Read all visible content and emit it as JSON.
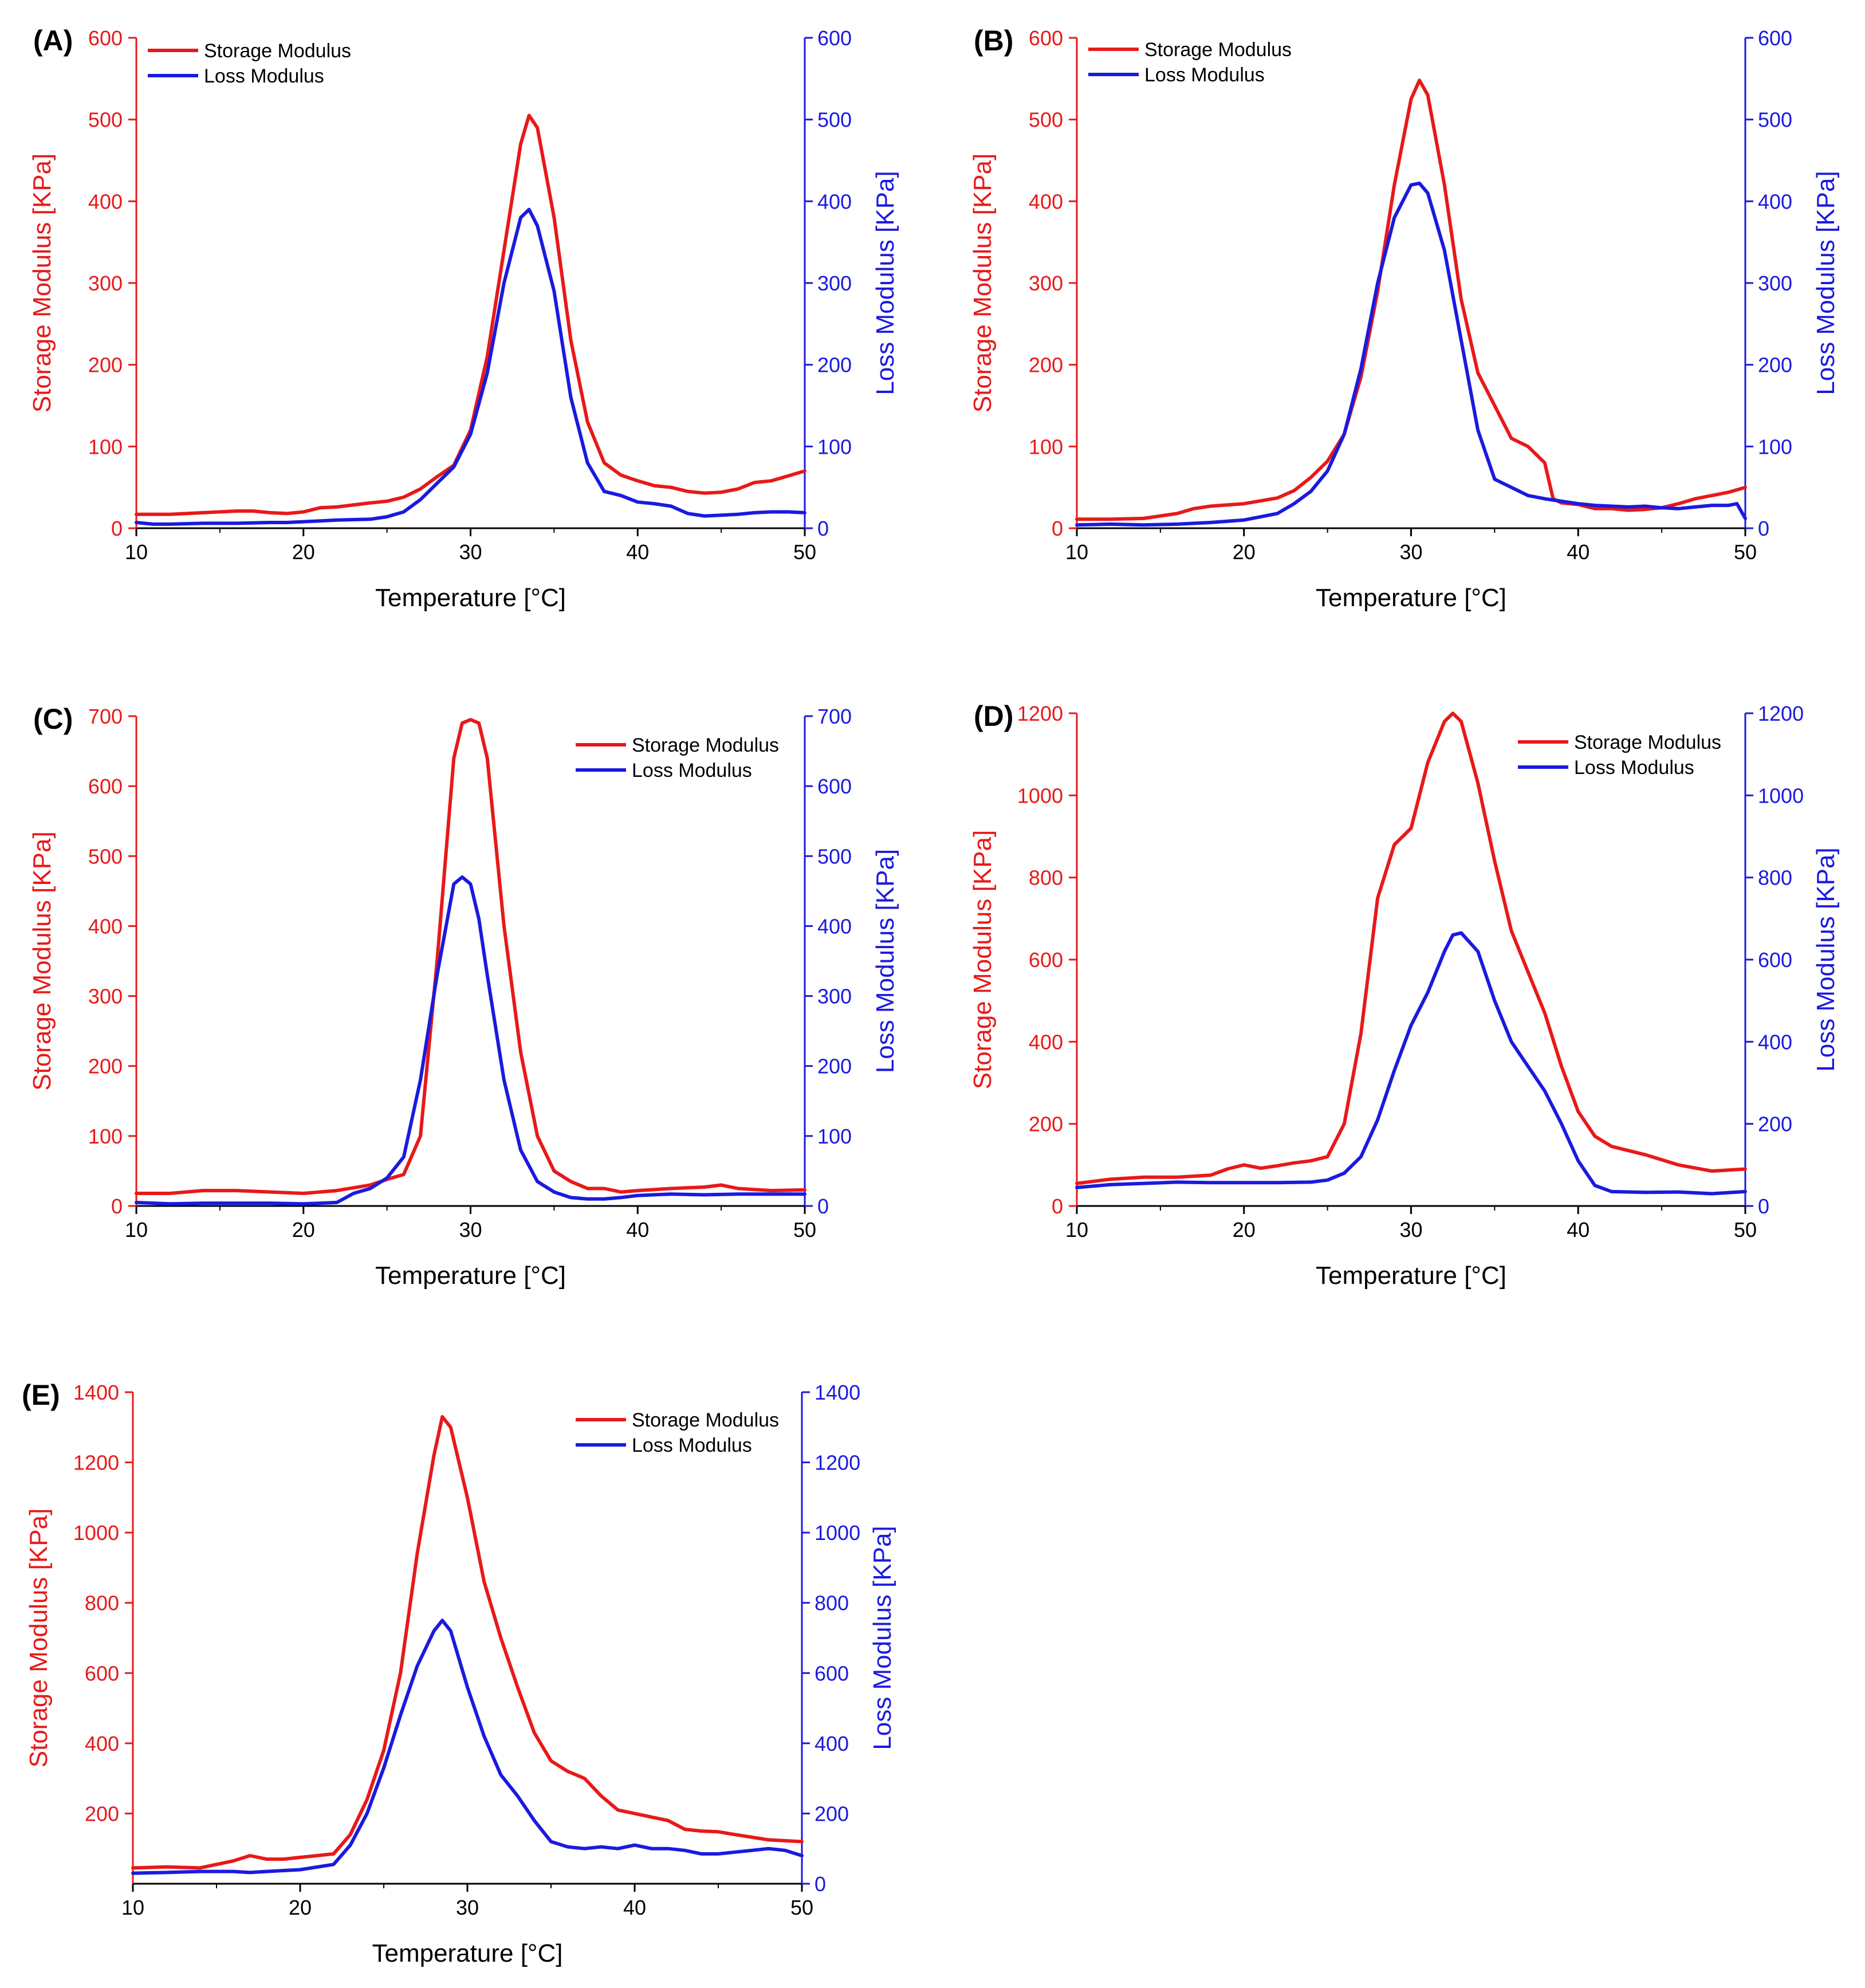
{
  "figure": {
    "colors": {
      "storage": "#e81919",
      "loss": "#1a1adf",
      "axis": "#000000"
    },
    "panels": [
      {
        "label": "(A)"
      },
      {
        "label": "(B)"
      },
      {
        "label": "(C)"
      },
      {
        "label": "(D)"
      },
      {
        "label": "(E)"
      }
    ]
  },
  "chart_data": [
    {
      "type": "line",
      "panel": "(A)",
      "xlabel": "Temperature [°C]",
      "ylabel_left": "Storage Modulus [KPa]",
      "ylabel_right": "Loss Modulus [KPa]",
      "xlim": [
        10,
        50
      ],
      "xticks": [
        10,
        20,
        30,
        40,
        50
      ],
      "ylim": [
        0,
        600
      ],
      "yticks": [
        0,
        100,
        200,
        300,
        400,
        500,
        600
      ],
      "legend_position": "top-left",
      "series": [
        {
          "name": "Storage Modulus",
          "axis": "left",
          "x": [
            10,
            12,
            14,
            16,
            17,
            18,
            19,
            20,
            21,
            22,
            24,
            25,
            26,
            27,
            28,
            29,
            30,
            31,
            32,
            33,
            33.5,
            34,
            35,
            36,
            37,
            38,
            39,
            40,
            41,
            42,
            43,
            44,
            45,
            46,
            47,
            48,
            49,
            50
          ],
          "y": [
            17,
            17,
            19,
            21,
            21,
            19,
            18,
            20,
            25,
            26,
            31,
            33,
            38,
            48,
            63,
            77,
            120,
            210,
            340,
            470,
            505,
            490,
            380,
            230,
            130,
            80,
            65,
            58,
            52,
            50,
            45,
            43,
            44,
            48,
            56,
            58,
            64,
            70
          ]
        },
        {
          "name": "Loss Modulus",
          "axis": "right",
          "x": [
            10,
            11,
            12,
            14,
            16,
            18,
            19,
            20,
            21,
            22,
            24,
            25,
            26,
            27,
            28,
            29,
            30,
            31,
            32,
            33,
            33.5,
            34,
            35,
            36,
            37,
            38,
            39,
            40,
            41,
            42,
            43,
            44,
            45,
            46,
            47,
            48,
            49,
            50
          ],
          "y": [
            7,
            5,
            5,
            6,
            6,
            7,
            7,
            8,
            9,
            10,
            11,
            14,
            20,
            35,
            55,
            75,
            115,
            190,
            300,
            380,
            390,
            370,
            290,
            160,
            80,
            45,
            40,
            32,
            30,
            27,
            18,
            15,
            16,
            17,
            19,
            20,
            20,
            19
          ]
        }
      ]
    },
    {
      "type": "line",
      "panel": "(B)",
      "xlabel": "Temperature [°C]",
      "ylabel_left": "Storage Modulus [KPa]",
      "ylabel_right": "Loss Modulus [KPa]",
      "xlim": [
        10,
        50
      ],
      "xticks": [
        10,
        20,
        30,
        40,
        50
      ],
      "ylim": [
        0,
        600
      ],
      "yticks": [
        0,
        100,
        200,
        300,
        400,
        500,
        600
      ],
      "legend_position": "top-left",
      "series": [
        {
          "name": "Storage Modulus",
          "axis": "left",
          "x": [
            10,
            12,
            14,
            16,
            17,
            18,
            20,
            22,
            23,
            24,
            25,
            26,
            27,
            28,
            29,
            30,
            30.5,
            31,
            32,
            33,
            34,
            35,
            36,
            37,
            38,
            38.5,
            39,
            40,
            41,
            42,
            43,
            44,
            45,
            46,
            47,
            48,
            49,
            50
          ],
          "y": [
            11,
            11,
            12,
            18,
            24,
            27,
            30,
            37,
            46,
            62,
            82,
            115,
            185,
            290,
            420,
            525,
            548,
            530,
            420,
            280,
            190,
            150,
            110,
            100,
            80,
            36,
            31,
            29,
            24,
            24,
            22,
            23,
            25,
            30,
            36,
            40,
            44,
            50
          ]
        },
        {
          "name": "Loss Modulus",
          "axis": "right",
          "x": [
            10,
            12,
            14,
            16,
            18,
            20,
            22,
            23,
            24,
            25,
            26,
            27,
            28,
            29,
            30,
            30.5,
            31,
            32,
            33,
            34,
            35,
            36,
            37,
            38,
            39,
            40,
            41,
            42,
            43,
            44,
            45,
            46,
            47,
            48,
            49,
            49.5,
            50
          ],
          "y": [
            4,
            5,
            4,
            5,
            7,
            10,
            18,
            30,
            45,
            70,
            115,
            195,
            300,
            380,
            420,
            422,
            410,
            340,
            230,
            120,
            60,
            50,
            40,
            36,
            33,
            30,
            28,
            27,
            26,
            27,
            25,
            24,
            26,
            28,
            28,
            30,
            12
          ]
        }
      ]
    },
    {
      "type": "line",
      "panel": "(C)",
      "xlabel": "Temperature [°C]",
      "ylabel_left": "Storage Modulus [KPa]",
      "ylabel_right": "Loss Modulus [KPa]",
      "xlim": [
        10,
        50
      ],
      "xticks": [
        10,
        20,
        30,
        40,
        50
      ],
      "ylim": [
        0,
        700
      ],
      "yticks": [
        0,
        100,
        200,
        300,
        400,
        500,
        600,
        700
      ],
      "legend_position": "top-right",
      "series": [
        {
          "name": "Storage Modulus",
          "axis": "left",
          "x": [
            10,
            12,
            14,
            16,
            18,
            20,
            22,
            24,
            25,
            26,
            27,
            28,
            29,
            29.5,
            30,
            30.5,
            31,
            32,
            33,
            34,
            35,
            36,
            37,
            38,
            39,
            40,
            42,
            44,
            45,
            46,
            48,
            50
          ],
          "y": [
            18,
            18,
            22,
            22,
            20,
            18,
            22,
            30,
            38,
            45,
            100,
            350,
            640,
            690,
            695,
            690,
            640,
            400,
            220,
            100,
            50,
            35,
            25,
            25,
            20,
            22,
            25,
            27,
            30,
            25,
            22,
            23
          ]
        },
        {
          "name": "Loss Modulus",
          "axis": "right",
          "x": [
            10,
            12,
            14,
            16,
            18,
            20,
            21,
            22,
            23,
            24,
            25,
            26,
            27,
            28,
            29,
            29.5,
            30,
            30.5,
            31,
            32,
            33,
            34,
            35,
            36,
            37,
            38,
            39,
            40,
            42,
            44,
            46,
            48,
            50
          ],
          "y": [
            5,
            3,
            4,
            4,
            4,
            3,
            4,
            5,
            18,
            25,
            40,
            70,
            180,
            330,
            460,
            470,
            460,
            410,
            330,
            180,
            80,
            35,
            20,
            12,
            10,
            10,
            12,
            15,
            17,
            16,
            17,
            17,
            17
          ]
        }
      ]
    },
    {
      "type": "line",
      "panel": "(D)",
      "xlabel": "Temperature [°C]",
      "ylabel_left": "Storage Modulus [KPa]",
      "ylabel_right": "Loss Modulus [KPa]",
      "xlim": [
        10,
        50
      ],
      "xticks": [
        10,
        20,
        30,
        40,
        50
      ],
      "ylim": [
        0,
        1200
      ],
      "yticks": [
        0,
        200,
        400,
        600,
        800,
        1000,
        1200
      ],
      "legend_position": "top-right",
      "series": [
        {
          "name": "Storage Modulus",
          "axis": "left",
          "x": [
            10,
            12,
            14,
            16,
            18,
            19,
            20,
            21,
            22,
            23,
            24,
            25,
            26,
            27,
            28,
            29,
            30,
            31,
            32,
            32.5,
            33,
            34,
            35,
            36,
            37,
            38,
            39,
            40,
            41,
            42,
            44,
            46,
            48,
            50
          ],
          "y": [
            55,
            65,
            70,
            70,
            75,
            90,
            100,
            92,
            98,
            105,
            110,
            120,
            200,
            420,
            750,
            880,
            920,
            1080,
            1180,
            1200,
            1180,
            1030,
            840,
            670,
            570,
            470,
            340,
            230,
            170,
            145,
            125,
            100,
            85,
            90
          ]
        },
        {
          "name": "Loss Modulus",
          "axis": "right",
          "x": [
            10,
            12,
            14,
            16,
            18,
            20,
            22,
            24,
            25,
            26,
            27,
            28,
            29,
            30,
            31,
            32,
            32.5,
            33,
            34,
            35,
            36,
            37,
            38,
            39,
            40,
            41,
            42,
            44,
            46,
            48,
            50
          ],
          "y": [
            45,
            52,
            55,
            58,
            57,
            57,
            57,
            58,
            63,
            80,
            120,
            210,
            330,
            440,
            520,
            620,
            660,
            665,
            620,
            500,
            400,
            340,
            280,
            200,
            110,
            50,
            35,
            33,
            34,
            30,
            35
          ]
        }
      ]
    },
    {
      "type": "line",
      "panel": "(E)",
      "xlabel": "Temperature [°C]",
      "ylabel_left": "Storage Modulus [KPa]",
      "ylabel_right": "Loss Modulus [KPa]",
      "xlim": [
        10,
        50
      ],
      "xticks": [
        10,
        20,
        30,
        40,
        50
      ],
      "ylim": [
        0,
        1400
      ],
      "yticks_left": [
        200,
        400,
        600,
        800,
        1000,
        1200,
        1400
      ],
      "yticks_right": [
        0,
        200,
        400,
        600,
        800,
        1000,
        1200,
        1400
      ],
      "legend_position": "top-right",
      "series": [
        {
          "name": "Storage Modulus",
          "axis": "left",
          "x": [
            10,
            12,
            14,
            16,
            17,
            18,
            19,
            20,
            21,
            22,
            23,
            24,
            25,
            26,
            27,
            28,
            28.5,
            29,
            30,
            31,
            32,
            33,
            34,
            35,
            36,
            37,
            38,
            39,
            40,
            41,
            42,
            43,
            44,
            45,
            46,
            48,
            50
          ],
          "y": [
            45,
            48,
            45,
            65,
            80,
            70,
            70,
            75,
            80,
            85,
            140,
            240,
            380,
            600,
            940,
            1220,
            1330,
            1300,
            1100,
            860,
            700,
            560,
            430,
            350,
            320,
            300,
            250,
            210,
            200,
            190,
            180,
            155,
            150,
            148,
            140,
            125,
            120
          ]
        },
        {
          "name": "Loss Modulus",
          "axis": "right",
          "x": [
            10,
            12,
            14,
            16,
            17,
            18,
            20,
            22,
            23,
            24,
            25,
            26,
            27,
            28,
            28.5,
            29,
            30,
            31,
            32,
            33,
            34,
            35,
            36,
            37,
            38,
            39,
            40,
            41,
            42,
            43,
            44,
            45,
            46,
            47,
            48,
            49,
            50
          ],
          "y": [
            30,
            32,
            35,
            35,
            32,
            35,
            40,
            55,
            110,
            200,
            330,
            480,
            620,
            720,
            750,
            720,
            560,
            420,
            310,
            250,
            180,
            120,
            105,
            100,
            105,
            100,
            110,
            100,
            100,
            95,
            85,
            85,
            90,
            95,
            100,
            95,
            80
          ]
        }
      ]
    }
  ]
}
